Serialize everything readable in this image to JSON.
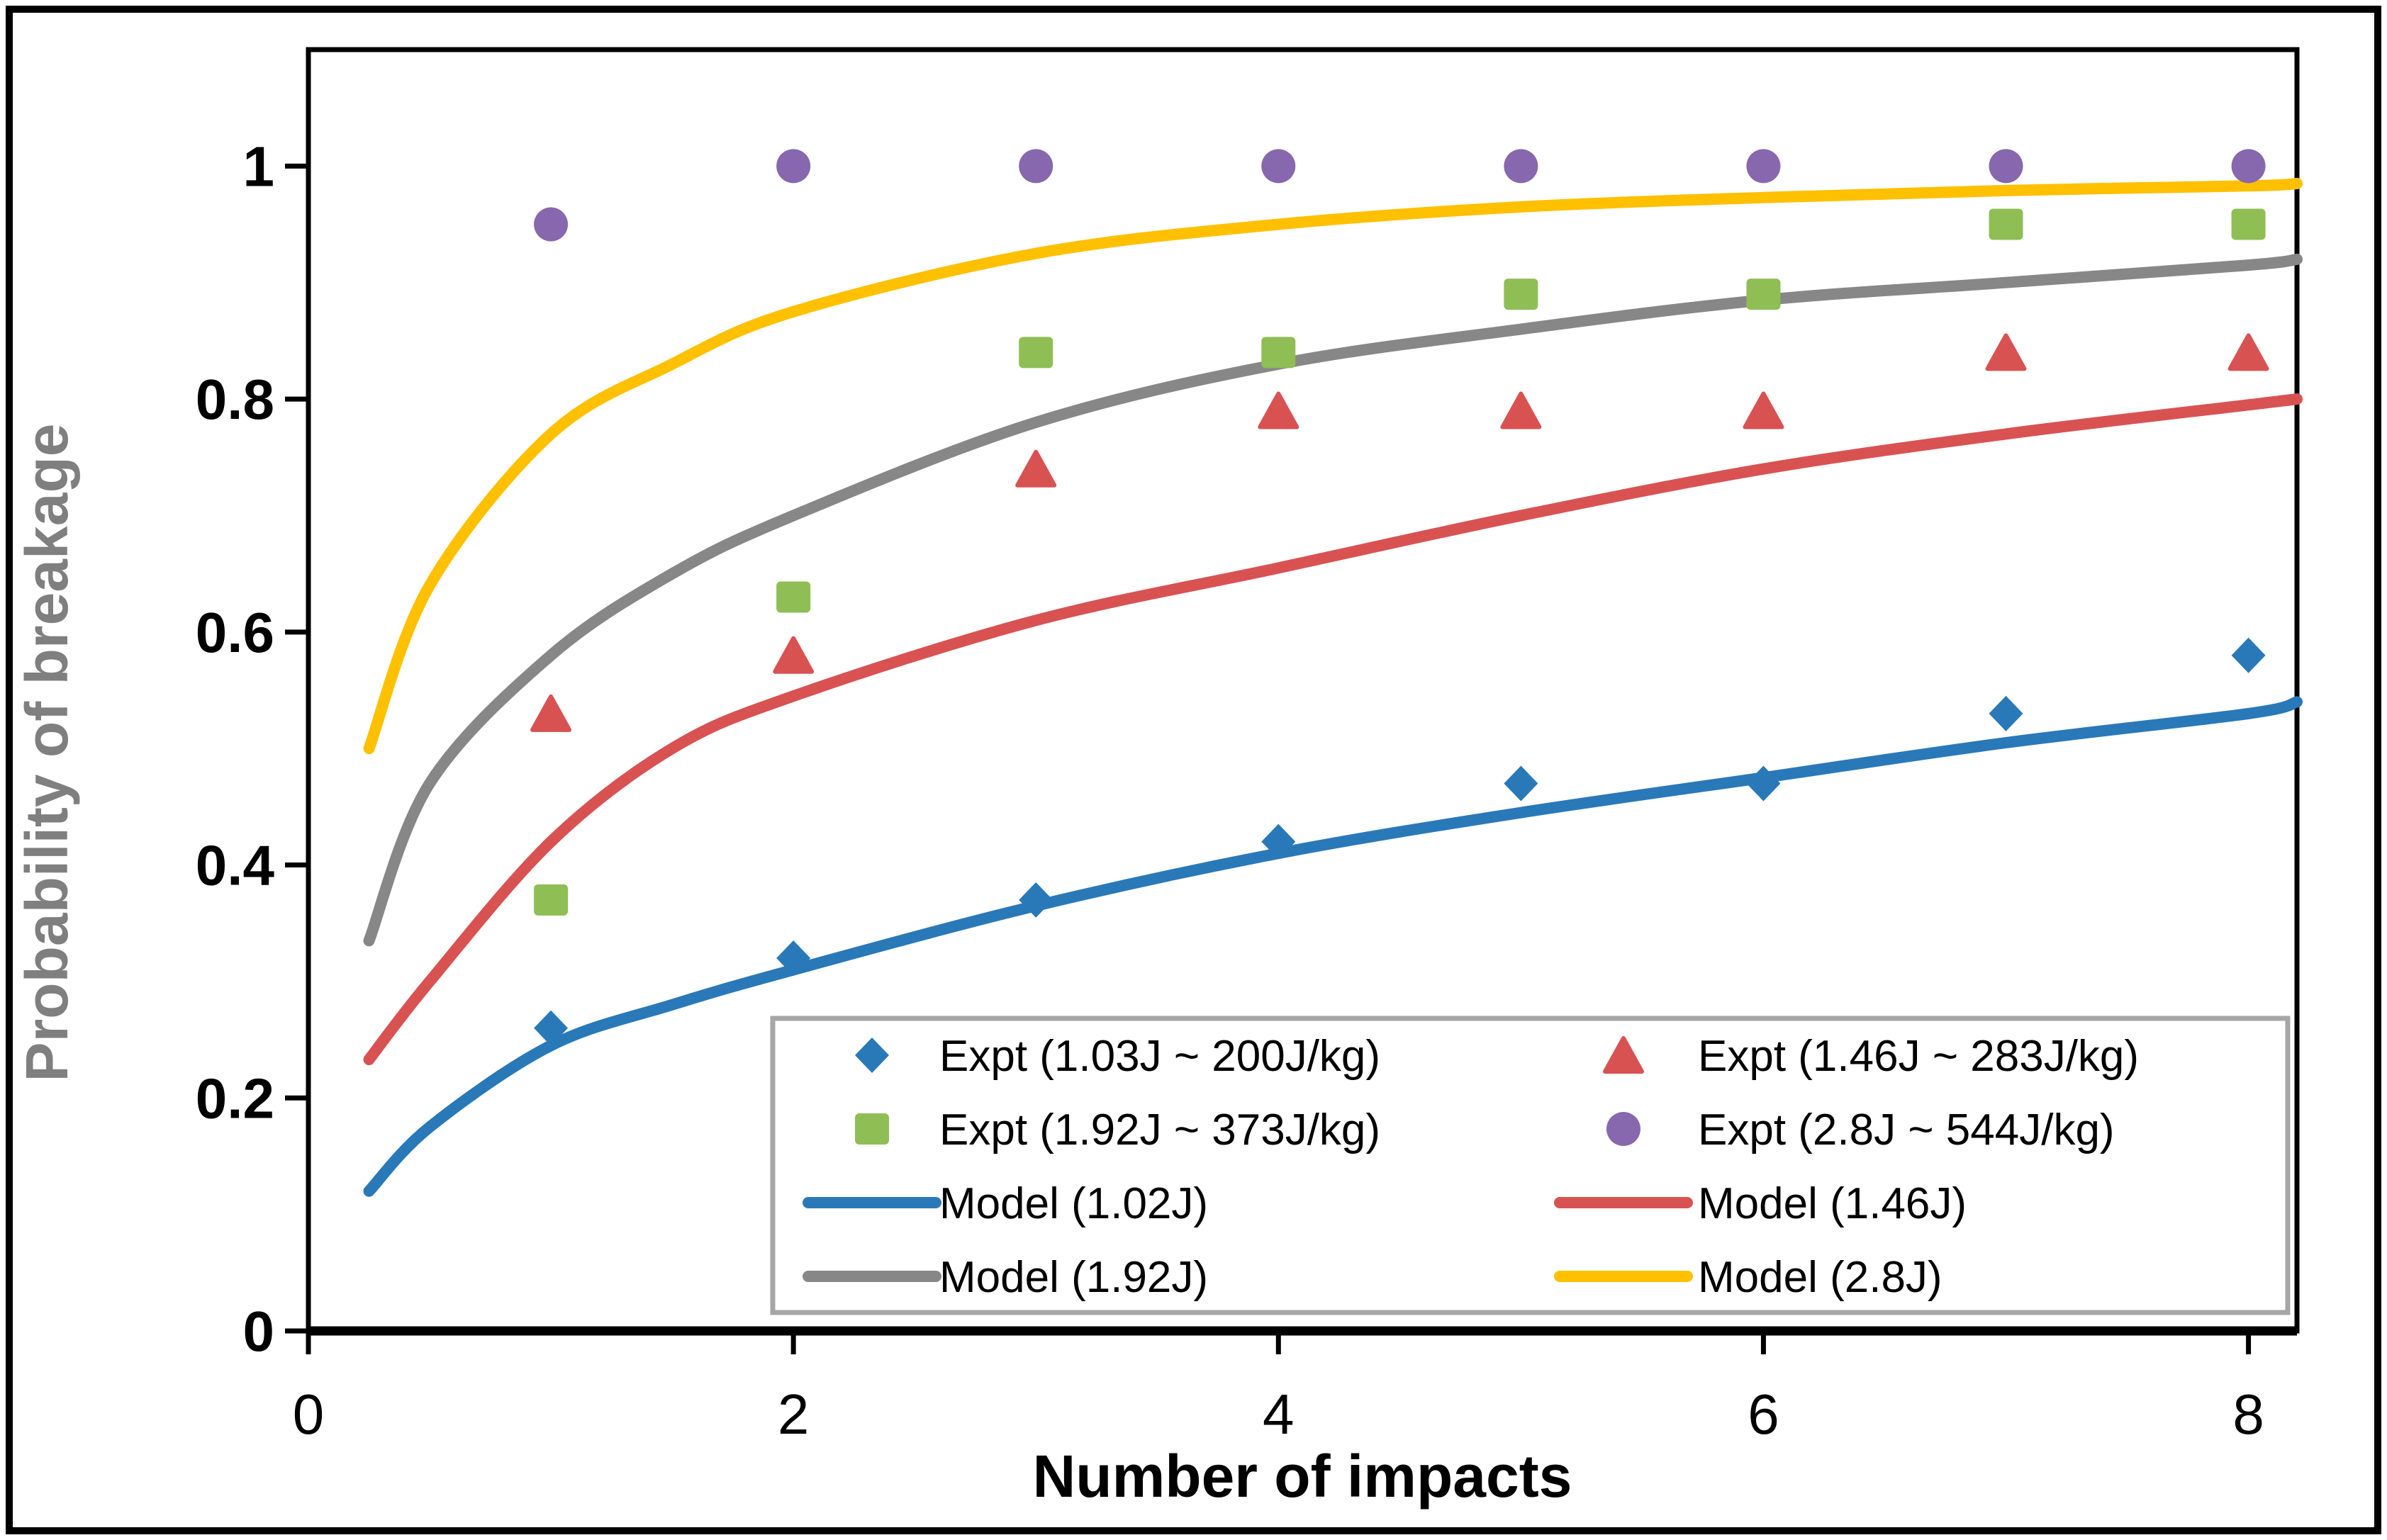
{
  "figure": {
    "background": "#ffffff",
    "outer_border_color": "#000000",
    "plot_border_color": "#000000",
    "y_axis_title_color": "#7f7f7f",
    "x_axis_title_color": "#000000",
    "legend_border_color": "#a6a6a6"
  },
  "chart_data": {
    "type": "scatter",
    "title": "",
    "xlabel": "Number of impacts",
    "ylabel": "Probability of breakage",
    "xlim": [
      0,
      8.2
    ],
    "ylim": [
      0,
      1.1
    ],
    "grid": false,
    "x_ticks": [
      0,
      2,
      4,
      6,
      8
    ],
    "x_tick_labels": [
      "0",
      "2",
      "4",
      "6",
      "8"
    ],
    "y_ticks": [
      0,
      0.2,
      0.4,
      0.6,
      0.8,
      1
    ],
    "y_tick_labels": [
      "0",
      "0.2",
      "0.4",
      "0.6",
      "0.8",
      "1"
    ],
    "scatter_x": [
      1,
      2,
      3,
      4,
      5,
      6,
      7,
      8
    ],
    "scatter_series": [
      {
        "name": "Expt (1.03J ~ 200J/kg)",
        "marker": "diamond",
        "color": "#2979B9",
        "values": [
          0.26,
          0.32,
          0.37,
          0.42,
          0.47,
          0.47,
          0.53,
          0.58
        ]
      },
      {
        "name": "Expt (1.46J ~ 283J/kg)",
        "marker": "triangle",
        "color": "#D95252",
        "values": [
          0.53,
          0.58,
          0.74,
          0.79,
          0.79,
          0.79,
          0.84,
          0.84
        ]
      },
      {
        "name": "Expt (1.92J ~ 373J/kg)",
        "marker": "square",
        "color": "#8FBE55",
        "values": [
          0.37,
          0.63,
          0.84,
          0.84,
          0.89,
          0.89,
          0.95,
          0.95
        ]
      },
      {
        "name": "Expt (2.8J ~ 544J/kg)",
        "marker": "circle",
        "color": "#8767AD",
        "values": [
          0.95,
          1.0,
          1.0,
          1.0,
          1.0,
          1.0,
          1.0,
          1.0
        ]
      }
    ],
    "model_x": [
      0.25,
      0.5,
      1,
      1.5,
      2,
      3,
      4,
      5,
      6,
      7,
      8,
      8.2
    ],
    "line_series": [
      {
        "name": "Model (1.02J)",
        "color": "#2979B9",
        "values": [
          0.12,
          0.175,
          0.245,
          0.28,
          0.31,
          0.365,
          0.41,
          0.445,
          0.475,
          0.505,
          0.53,
          0.54
        ]
      },
      {
        "name": "Model (1.46J)",
        "color": "#D95252",
        "values": [
          0.233,
          0.3,
          0.42,
          0.5,
          0.545,
          0.61,
          0.655,
          0.7,
          0.74,
          0.77,
          0.795,
          0.8
        ]
      },
      {
        "name": "Model (1.92J)",
        "color": "#878787",
        "values": [
          0.335,
          0.47,
          0.58,
          0.65,
          0.7,
          0.78,
          0.83,
          0.86,
          0.885,
          0.9,
          0.915,
          0.92
        ]
      },
      {
        "name": "Model (2.8J)",
        "color": "#FFC000",
        "values": [
          0.5,
          0.64,
          0.77,
          0.83,
          0.875,
          0.925,
          0.95,
          0.965,
          0.973,
          0.979,
          0.983,
          0.985
        ]
      }
    ],
    "legend": {
      "position": "inside-bottom-right",
      "columns": 2,
      "entries": [
        {
          "label": "Expt (1.03J ~ 200J/kg)",
          "symbol": "diamond",
          "color": "#2979B9"
        },
        {
          "label": "Expt (1.46J ~ 283J/kg)",
          "symbol": "triangle",
          "color": "#D95252"
        },
        {
          "label": "Expt (1.92J ~ 373J/kg)",
          "symbol": "square",
          "color": "#8FBE55"
        },
        {
          "label": "Expt (2.8J ~ 544J/kg)",
          "symbol": "circle",
          "color": "#8767AD"
        },
        {
          "label": "Model (1.02J)",
          "symbol": "line",
          "color": "#2979B9"
        },
        {
          "label": "Model (1.46J)",
          "symbol": "line",
          "color": "#D95252"
        },
        {
          "label": "Model (1.92J)",
          "symbol": "line",
          "color": "#878787"
        },
        {
          "label": "Model (2.8J)",
          "symbol": "line",
          "color": "#FFC000"
        }
      ]
    }
  }
}
